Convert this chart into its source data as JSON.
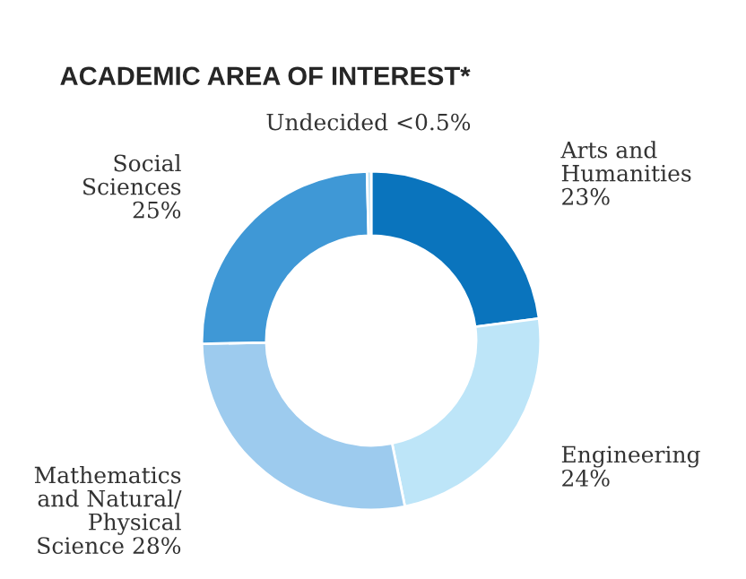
{
  "chart_data": {
    "type": "donut",
    "title": "ACADEMIC AREA OF INTEREST*",
    "categories": [
      "Arts and\nHumanities",
      "Engineering",
      "Mathematics\nand Natural/\nPhysical\nScience",
      "Social\nSciences",
      "Undecided"
    ],
    "values": [
      23,
      24,
      28,
      25,
      0.4
    ],
    "value_labels": [
      "23%",
      "24%",
      "28%",
      "25%",
      "<0.5%"
    ],
    "colors": [
      "#0a74bd",
      "#bde5f8",
      "#9dcbee",
      "#3f98d6",
      "#b9e0f4"
    ]
  }
}
